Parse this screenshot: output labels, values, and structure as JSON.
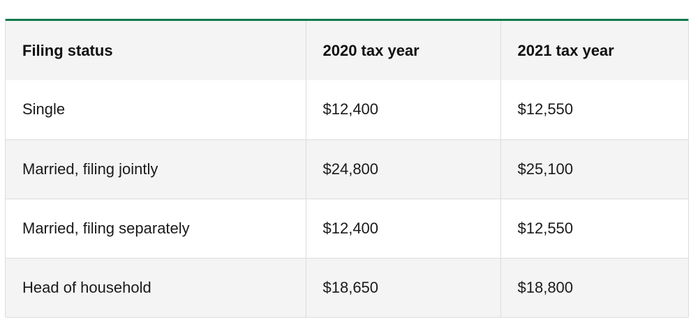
{
  "table": {
    "headers": [
      "Filing status",
      "2020 tax year",
      "2021 tax year"
    ],
    "rows": [
      [
        "Single",
        "$12,400",
        "$12,550"
      ],
      [
        "Married, filing jointly",
        "$24,800",
        "$25,100"
      ],
      [
        "Married, filing separately",
        "$12,400",
        "$12,550"
      ],
      [
        "Head of household",
        "$18,650",
        "$18,800"
      ]
    ]
  },
  "colors": {
    "accent_border": "#0a7a4a",
    "shaded_row": "#f4f4f4",
    "grid_line": "#dcdcdc"
  }
}
